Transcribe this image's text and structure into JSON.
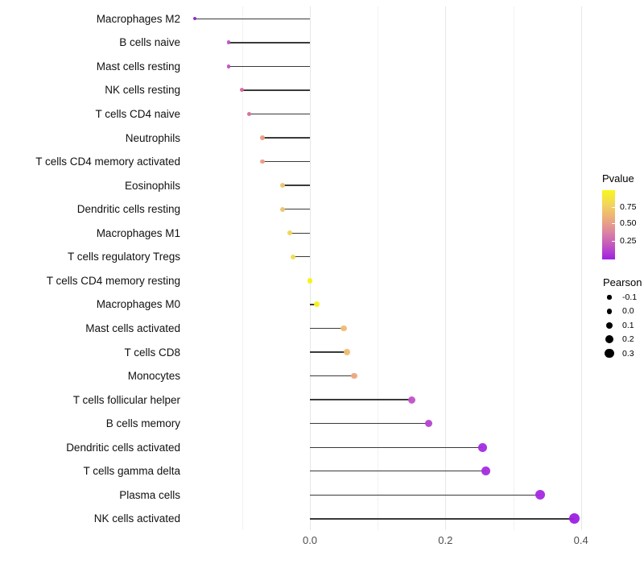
{
  "chart_data": {
    "type": "lollipop",
    "title": "",
    "xlabel": "",
    "ylabel": "",
    "xlim": [
      -0.178,
      0.42
    ],
    "grid": "vertical-only",
    "x_axis": {
      "ticks": [
        {
          "label": "0.0",
          "value": 0.0
        },
        {
          "label": "0.2",
          "value": 0.2
        },
        {
          "label": "0.4",
          "value": 0.4
        }
      ],
      "minor_gridlines": [
        -0.1,
        0.1,
        0.3
      ]
    },
    "points": [
      {
        "label": "Macrophages M2",
        "pearson": -0.17,
        "pvalue": 0.1,
        "color": "#8f25c4"
      },
      {
        "label": "B cells naive",
        "pearson": -0.12,
        "pvalue": 0.3,
        "color": "#c053c1"
      },
      {
        "label": "Mast cells resting",
        "pearson": -0.12,
        "pvalue": 0.3,
        "color": "#c053c1"
      },
      {
        "label": "NK cells resting",
        "pearson": -0.1,
        "pvalue": 0.4,
        "color": "#d4679e"
      },
      {
        "label": "T cells CD4 naive",
        "pearson": -0.09,
        "pvalue": 0.42,
        "color": "#d76d9a"
      },
      {
        "label": "Neutrophils",
        "pearson": -0.07,
        "pvalue": 0.55,
        "color": "#ec9b85"
      },
      {
        "label": "T cells CD4 memory activated",
        "pearson": -0.07,
        "pvalue": 0.55,
        "color": "#ec9b85"
      },
      {
        "label": "Eosinophils",
        "pearson": -0.04,
        "pvalue": 0.7,
        "color": "#edc46c"
      },
      {
        "label": "Dendritic cells resting",
        "pearson": -0.04,
        "pvalue": 0.7,
        "color": "#edc46c"
      },
      {
        "label": "Macrophages M1",
        "pearson": -0.03,
        "pvalue": 0.78,
        "color": "#f0d554"
      },
      {
        "label": "T cells regulatory  Tregs",
        "pearson": -0.025,
        "pvalue": 0.8,
        "color": "#f2dc4b"
      },
      {
        "label": "T cells CD4 memory resting",
        "pearson": 0.0,
        "pvalue": 0.97,
        "color": "#f5f214"
      },
      {
        "label": "Macrophages M0",
        "pearson": 0.01,
        "pvalue": 0.95,
        "color": "#f5f214"
      },
      {
        "label": "Mast cells activated",
        "pearson": 0.05,
        "pvalue": 0.68,
        "color": "#efbd74"
      },
      {
        "label": "T cells CD8",
        "pearson": 0.055,
        "pvalue": 0.68,
        "color": "#efbd74"
      },
      {
        "label": "Monocytes",
        "pearson": 0.065,
        "pvalue": 0.58,
        "color": "#eda67e"
      },
      {
        "label": "T cells follicular helper",
        "pearson": 0.15,
        "pvalue": 0.28,
        "color": "#c351c9"
      },
      {
        "label": "B cells memory",
        "pearson": 0.175,
        "pvalue": 0.22,
        "color": "#b441d4"
      },
      {
        "label": "Dendritic cells activated",
        "pearson": 0.255,
        "pvalue": 0.12,
        "color": "#a32ce0"
      },
      {
        "label": "T cells gamma delta",
        "pearson": 0.26,
        "pvalue": 0.12,
        "color": "#a32ce0"
      },
      {
        "label": "Plasma cells",
        "pearson": 0.34,
        "pvalue": 0.08,
        "color": "#a428e3"
      },
      {
        "label": "NK cells activated",
        "pearson": 0.39,
        "pvalue": 0.05,
        "color": "#9d1fe4"
      }
    ],
    "legend": {
      "pvalue": {
        "title": "Pvalue",
        "gradient_bottom_to_top": [
          "#9e21e2",
          "#c256c0",
          "#dd85a0",
          "#ecaf79",
          "#f2d65b",
          "#f7f71b"
        ],
        "ticks": [
          {
            "label": "0.75",
            "frac_from_top": 0.24
          },
          {
            "label": "0.50",
            "frac_from_top": 0.48
          },
          {
            "label": "0.25",
            "frac_from_top": 0.73
          }
        ]
      },
      "pearson": {
        "title": "Pearson",
        "items": [
          {
            "label": "-0.1",
            "value": -0.1
          },
          {
            "label": "0.0",
            "value": 0.0
          },
          {
            "label": "0.1",
            "value": 0.1
          },
          {
            "label": "0.2",
            "value": 0.2
          },
          {
            "label": "0.3",
            "value": 0.3
          }
        ],
        "dot_color": "#000000"
      }
    }
  }
}
